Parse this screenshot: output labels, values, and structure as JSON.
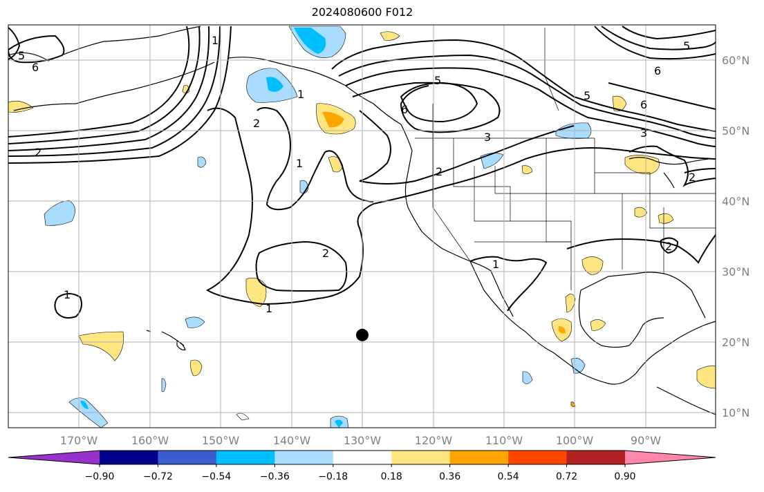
{
  "map": {
    "title": "2024080600 F012",
    "longitude_labels": [
      "170°W",
      "160°W",
      "150°W",
      "140°W",
      "130°W",
      "120°W",
      "110°W",
      "100°W",
      "90°W"
    ],
    "latitude_labels": [
      "60°N",
      "50°N",
      "40°N",
      "30°N",
      "20°N",
      "10°N"
    ],
    "contour_labels": [
      "6",
      "5",
      "2",
      "1",
      "1",
      "2",
      "1",
      "2",
      "1",
      "5",
      "6",
      "3",
      "2",
      "1",
      "5",
      "6",
      "3",
      "2",
      "6",
      "5",
      "1",
      "2"
    ],
    "marker": {
      "lon": -130,
      "lat": 21,
      "color": "#000000"
    },
    "colors": {
      "land_line": "#000000",
      "grid": "#b0b0b0",
      "contour": "#000000"
    }
  },
  "colorbar": {
    "tick_labels": [
      "−0.90",
      "−0.72",
      "−0.54",
      "−0.36",
      "−0.18",
      "0.18",
      "0.36",
      "0.54",
      "0.72",
      "0.90"
    ],
    "levels": [
      -0.9,
      -0.72,
      -0.54,
      -0.36,
      -0.18,
      0.18,
      0.36,
      0.54,
      0.72,
      0.9
    ],
    "colors": [
      "#9932cc",
      "#00008b",
      "#3a5fcd",
      "#00bfff",
      "#aadcff",
      "#ffffff",
      "#ffe680",
      "#ffa500",
      "#ff4500",
      "#b22222",
      "#ff88aa"
    ]
  }
}
